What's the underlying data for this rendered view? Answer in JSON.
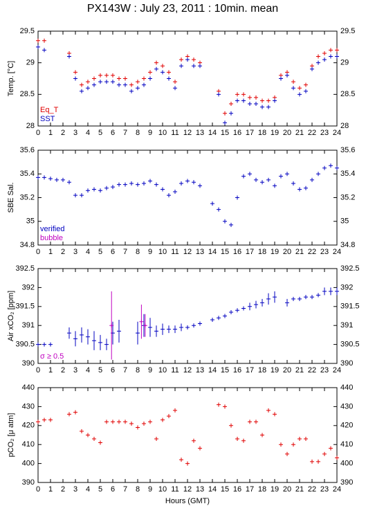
{
  "title": "PX143W : July 23, 2011 : 10min. mean",
  "chart_data": [
    {
      "type": "scatter",
      "ylabel": "Temp. [°C]",
      "xlim": [
        0,
        24
      ],
      "xticks": [
        0,
        1,
        2,
        3,
        4,
        5,
        6,
        7,
        8,
        9,
        10,
        11,
        12,
        13,
        14,
        15,
        16,
        17,
        18,
        19,
        20,
        21,
        22,
        23,
        24
      ],
      "ylim": [
        28,
        29.5
      ],
      "yticks": [
        28,
        28.5,
        29,
        29.5
      ],
      "legend": "lower left",
      "x": [
        0,
        0.5,
        1,
        1.5,
        2,
        2.5,
        3,
        3.5,
        4,
        4.5,
        5,
        5.5,
        6,
        6.5,
        7,
        7.5,
        8,
        8.5,
        9,
        9.5,
        10,
        10.5,
        11,
        11.5,
        12,
        12.5,
        13,
        13.5,
        14,
        14.5,
        15,
        15.5,
        16,
        16.5,
        17,
        17.5,
        18,
        18.5,
        19,
        19.5,
        20,
        20.5,
        21,
        21.5,
        22,
        22.5,
        23,
        23.5,
        24
      ],
      "series": [
        {
          "name": "Eq_T",
          "color": "#e00000",
          "values": [
            29.35,
            29.35,
            null,
            null,
            null,
            29.15,
            28.85,
            28.65,
            28.7,
            28.75,
            28.8,
            28.8,
            28.8,
            28.75,
            28.75,
            28.65,
            28.7,
            28.75,
            28.85,
            29.0,
            28.95,
            28.85,
            28.7,
            29.05,
            29.1,
            29.05,
            29.0,
            null,
            null,
            28.55,
            28.2,
            28.35,
            28.5,
            28.5,
            28.45,
            28.45,
            28.4,
            28.4,
            28.45,
            28.8,
            28.85,
            28.7,
            28.6,
            28.65,
            28.95,
            29.1,
            29.15,
            29.2,
            29.2
          ]
        },
        {
          "name": "SST",
          "color": "#0000c0",
          "values": [
            29.25,
            29.2,
            null,
            null,
            null,
            29.1,
            28.75,
            28.55,
            28.6,
            28.65,
            28.7,
            28.7,
            28.7,
            28.65,
            28.65,
            28.55,
            28.6,
            28.65,
            28.75,
            28.9,
            28.85,
            28.75,
            28.6,
            28.95,
            29.05,
            28.95,
            28.95,
            null,
            null,
            28.5,
            28.05,
            28.2,
            28.4,
            28.4,
            28.35,
            28.35,
            28.3,
            28.3,
            28.4,
            28.75,
            28.8,
            28.6,
            28.5,
            28.55,
            28.9,
            29.0,
            29.05,
            29.1,
            29.1
          ]
        }
      ]
    },
    {
      "type": "scatter",
      "ylabel": "SBE Sal.",
      "xlim": [
        0,
        24
      ],
      "xticks": [
        0,
        1,
        2,
        3,
        4,
        5,
        6,
        7,
        8,
        9,
        10,
        11,
        12,
        13,
        14,
        15,
        16,
        17,
        18,
        19,
        20,
        21,
        22,
        23,
        24
      ],
      "ylim": [
        34.8,
        35.6
      ],
      "yticks": [
        34.8,
        35,
        35.2,
        35.4,
        35.6
      ],
      "legend": "lower left",
      "x": [
        0,
        0.5,
        1,
        1.5,
        2,
        2.5,
        3,
        3.5,
        4,
        4.5,
        5,
        5.5,
        6,
        6.5,
        7,
        7.5,
        8,
        8.5,
        9,
        9.5,
        10,
        10.5,
        11,
        11.5,
        12,
        12.5,
        13,
        13.5,
        14,
        14.5,
        15,
        15.5,
        16,
        16.5,
        17,
        17.5,
        18,
        18.5,
        19,
        19.5,
        20,
        20.5,
        21,
        21.5,
        22,
        22.5,
        23,
        23.5,
        24
      ],
      "series": [
        {
          "name": "verified",
          "color": "#0000c0",
          "values": [
            35.37,
            35.37,
            35.36,
            35.35,
            35.35,
            35.33,
            35.22,
            35.22,
            35.26,
            35.27,
            35.26,
            35.28,
            35.29,
            35.31,
            35.31,
            35.32,
            35.31,
            35.32,
            35.34,
            35.31,
            35.27,
            35.22,
            35.25,
            35.32,
            35.34,
            35.33,
            35.3,
            null,
            35.15,
            35.1,
            35.0,
            34.97,
            35.2,
            35.38,
            35.4,
            35.35,
            35.33,
            35.35,
            35.3,
            35.38,
            35.4,
            35.32,
            35.27,
            35.28,
            35.35,
            35.4,
            35.45,
            35.47,
            35.45
          ]
        },
        {
          "name": "bubble",
          "color": "#c000c0",
          "values": [
            null,
            null,
            null,
            null,
            null,
            null,
            null,
            null,
            null,
            null,
            null,
            null,
            null,
            null,
            null,
            null,
            null,
            null,
            null,
            null,
            null,
            null,
            null,
            null,
            null,
            null,
            null,
            null,
            null,
            null,
            null,
            null,
            null,
            null,
            null,
            null,
            null,
            null,
            null,
            null,
            null,
            null,
            null,
            null,
            null,
            null,
            null,
            null,
            null
          ]
        }
      ]
    },
    {
      "type": "scatter",
      "ylabel": "Air xCO₂ [ppm]",
      "xlim": [
        0,
        24
      ],
      "xticks": [
        0,
        1,
        2,
        3,
        4,
        5,
        6,
        7,
        8,
        9,
        10,
        11,
        12,
        13,
        14,
        15,
        16,
        17,
        18,
        19,
        20,
        21,
        22,
        23,
        24
      ],
      "ylim": [
        390,
        392.5
      ],
      "yticks": [
        390,
        390.5,
        391,
        391.5,
        392,
        392.5
      ],
      "annotations": [
        {
          "text": "σ ≥ 0.5",
          "color": "#c000c0"
        }
      ],
      "x": [
        0,
        0.5,
        1,
        1.5,
        2,
        2.5,
        3,
        3.5,
        4,
        4.5,
        5,
        5.5,
        6,
        6.5,
        7,
        7.5,
        8,
        8.5,
        9,
        9.5,
        10,
        10.5,
        11,
        11.5,
        12,
        12.5,
        13,
        13.5,
        14,
        14.5,
        15,
        15.5,
        16,
        16.5,
        17,
        17.5,
        18,
        18.5,
        19,
        19.5,
        20,
        20.5,
        21,
        21.5,
        22,
        22.5,
        23,
        23.5,
        24
      ],
      "series": [
        {
          "color": "#0000c0",
          "values": [
            390.5,
            390.5,
            390.5,
            null,
            null,
            390.8,
            390.65,
            390.75,
            390.7,
            390.6,
            390.55,
            390.5,
            390.8,
            390.85,
            null,
            null,
            390.8,
            391.0,
            390.95,
            390.85,
            390.9,
            390.9,
            390.9,
            390.95,
            390.95,
            391.0,
            391.05,
            null,
            391.15,
            391.2,
            391.25,
            391.35,
            391.4,
            391.45,
            391.5,
            391.55,
            391.6,
            391.7,
            391.75,
            null,
            391.6,
            391.7,
            391.7,
            391.75,
            391.75,
            391.8,
            391.9,
            391.9,
            391.9
          ],
          "errors": [
            0.02,
            0.02,
            0.02,
            null,
            null,
            0.15,
            0.2,
            0.2,
            0.2,
            0.25,
            0.2,
            0.15,
            0.3,
            0.3,
            null,
            null,
            0.3,
            0.3,
            0.25,
            0.15,
            0.15,
            0.1,
            0.1,
            0.1,
            0.05,
            0.05,
            0.03,
            null,
            0.03,
            0.03,
            0.03,
            0.05,
            0.05,
            0.05,
            0.1,
            0.1,
            0.1,
            0.15,
            0.15,
            null,
            0.1,
            0.05,
            0.05,
            0.05,
            0.05,
            0.05,
            0.1,
            0.1,
            0.1
          ]
        },
        {
          "color": "#c000c0",
          "x": [
            5.9,
            8.3,
            8.6
          ],
          "values": [
            391.0,
            391.1,
            391.0
          ],
          "errors": [
            0.9,
            0.45,
            0.3
          ]
        }
      ]
    },
    {
      "type": "scatter",
      "ylabel": "pCO₂ [μ atm]",
      "xlabel": "Hours (GMT)",
      "xlim": [
        0,
        24
      ],
      "xticks": [
        0,
        1,
        2,
        3,
        4,
        5,
        6,
        7,
        8,
        9,
        10,
        11,
        12,
        13,
        14,
        15,
        16,
        17,
        18,
        19,
        20,
        21,
        22,
        23,
        24
      ],
      "ylim": [
        390,
        440
      ],
      "yticks": [
        390,
        400,
        410,
        420,
        430,
        440
      ],
      "x": [
        0,
        0.5,
        1,
        1.5,
        2,
        2.5,
        3,
        3.5,
        4,
        4.5,
        5,
        5.5,
        6,
        6.5,
        7,
        7.5,
        8,
        8.5,
        9,
        9.5,
        10,
        10.5,
        11,
        11.5,
        12,
        12.5,
        13,
        13.5,
        14,
        14.5,
        15,
        15.5,
        16,
        16.5,
        17,
        17.5,
        18,
        18.5,
        19,
        19.5,
        20,
        20.5,
        21,
        21.5,
        22,
        22.5,
        23,
        23.5,
        24
      ],
      "series": [
        {
          "color": "#e00000",
          "values": [
            422,
            423,
            423,
            null,
            null,
            426,
            427,
            417,
            415,
            413,
            411,
            422,
            422,
            422,
            422,
            421,
            419,
            421,
            422,
            413,
            423,
            425,
            428,
            402,
            400,
            412,
            408,
            null,
            null,
            431,
            430,
            420,
            413,
            412,
            422,
            422,
            415,
            428,
            426,
            410,
            405,
            410,
            413,
            413,
            401,
            401,
            405,
            408,
            403
          ]
        }
      ]
    }
  ]
}
